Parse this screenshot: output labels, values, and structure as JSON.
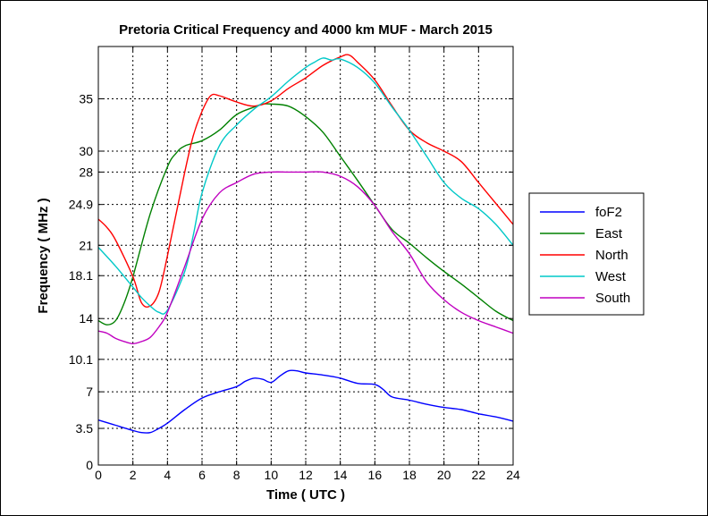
{
  "chart_data": {
    "type": "line",
    "title": "Pretoria Critical Frequency and 4000 km MUF - March 2015",
    "xlabel": "Time ( UTC )",
    "ylabel": "Frequency ( MHz )",
    "xlim": [
      0,
      24
    ],
    "ylim": [
      0,
      40
    ],
    "xticks": [
      0,
      2,
      4,
      6,
      8,
      10,
      12,
      14,
      16,
      18,
      20,
      22,
      24
    ],
    "yticks": [
      0,
      3.5,
      7,
      10.1,
      14,
      18.1,
      21,
      24.9,
      28,
      30,
      35
    ],
    "ytick_labels": [
      "0",
      "3.5",
      "7",
      "10.1",
      "14",
      "18.1",
      "21",
      "24.9",
      "28",
      "30",
      "35"
    ],
    "grid": true,
    "legend_position": "right",
    "series": [
      {
        "name": "foF2",
        "color": "#0000ff",
        "x": [
          0,
          1,
          2,
          2.5,
          3,
          3.5,
          4,
          5,
          6,
          7,
          8,
          8.5,
          9,
          9.5,
          10,
          10.5,
          11,
          11.5,
          12,
          13,
          14,
          15,
          16,
          16.5,
          17,
          18,
          19,
          20,
          21,
          22,
          23,
          24
        ],
        "y": [
          4.3,
          3.8,
          3.3,
          3.1,
          3.1,
          3.5,
          4.0,
          5.3,
          6.4,
          7.0,
          7.5,
          8.0,
          8.3,
          8.2,
          7.9,
          8.5,
          9.0,
          9.0,
          8.8,
          8.6,
          8.3,
          7.8,
          7.7,
          7.2,
          6.5,
          6.2,
          5.8,
          5.5,
          5.3,
          4.9,
          4.6,
          4.2
        ]
      },
      {
        "name": "East",
        "color": "#008000",
        "x": [
          0,
          0.5,
          1,
          1.5,
          2,
          3,
          4,
          4.5,
          5,
          6,
          7,
          8,
          9,
          9.5,
          10,
          11,
          12,
          13,
          14,
          15,
          16,
          17,
          18,
          19,
          20,
          21,
          22,
          23,
          24
        ],
        "y": [
          13.8,
          13.4,
          13.8,
          15.5,
          18.0,
          24.0,
          28.5,
          29.8,
          30.5,
          31.0,
          32.0,
          33.5,
          34.2,
          34.5,
          34.5,
          34.3,
          33.3,
          31.8,
          29.5,
          27.2,
          24.8,
          22.5,
          21.2,
          19.8,
          18.5,
          17.3,
          16.0,
          14.7,
          13.8
        ]
      },
      {
        "name": "North",
        "color": "#ff0000",
        "x": [
          0,
          0.5,
          1,
          2,
          2.5,
          3,
          3.5,
          4,
          5,
          5.5,
          6,
          6.5,
          7,
          8,
          9,
          10,
          11,
          12,
          13,
          14,
          14.5,
          15,
          16,
          17,
          18,
          19,
          20,
          21,
          22,
          23,
          24
        ],
        "y": [
          23.5,
          22.7,
          21.5,
          18.0,
          15.5,
          15.2,
          16.5,
          20.0,
          28.0,
          31.5,
          33.8,
          35.3,
          35.3,
          34.7,
          34.3,
          34.8,
          36.0,
          37.0,
          38.2,
          39.0,
          39.2,
          38.5,
          36.8,
          34.3,
          32.0,
          30.8,
          30.0,
          29.0,
          27.0,
          25.0,
          23.0
        ]
      },
      {
        "name": "West",
        "color": "#00c8c8",
        "x": [
          0,
          1,
          2,
          2.5,
          3,
          3.5,
          4,
          5,
          5.5,
          6,
          7,
          8,
          9,
          10,
          11,
          12,
          12.5,
          13,
          13.5,
          14,
          15,
          16,
          17,
          18,
          19,
          20,
          21,
          22,
          23,
          24
        ],
        "y": [
          20.8,
          19.0,
          17.0,
          16.0,
          15.2,
          14.6,
          14.8,
          18.5,
          22.0,
          26.0,
          30.5,
          32.5,
          34.0,
          35.2,
          36.7,
          38.0,
          38.5,
          38.9,
          38.7,
          38.8,
          38.0,
          36.5,
          34.2,
          32.0,
          29.5,
          27.0,
          25.5,
          24.5,
          23.0,
          21.0
        ]
      },
      {
        "name": "South",
        "color": "#c000c0",
        "x": [
          0,
          0.5,
          1,
          1.5,
          2,
          2.5,
          3,
          3.5,
          4,
          5,
          6,
          7,
          8,
          9,
          10,
          11,
          12,
          13,
          14,
          15,
          16,
          17,
          18,
          19,
          20,
          21,
          22,
          23,
          24
        ],
        "y": [
          12.8,
          12.6,
          12.1,
          11.8,
          11.6,
          11.8,
          12.2,
          13.2,
          14.6,
          19.0,
          23.5,
          26.0,
          27.0,
          27.8,
          28.0,
          28.0,
          28.0,
          28.0,
          27.6,
          26.6,
          24.8,
          22.3,
          20.2,
          17.5,
          15.8,
          14.6,
          13.8,
          13.2,
          12.6
        ]
      }
    ]
  }
}
